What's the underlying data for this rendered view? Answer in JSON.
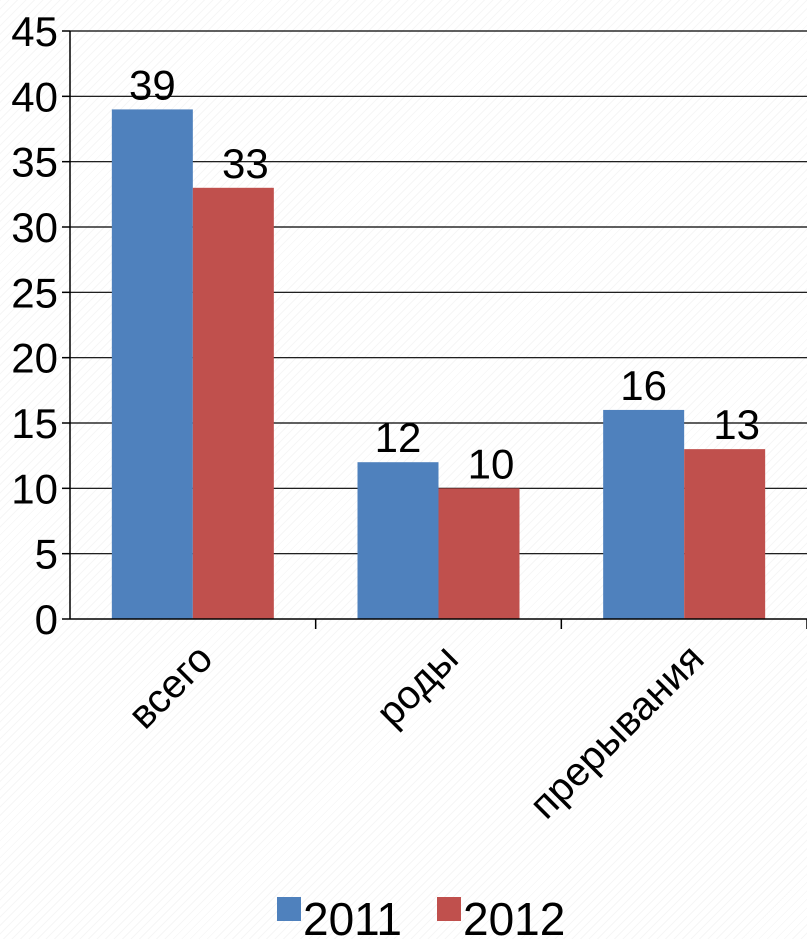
{
  "chart_data": {
    "type": "bar",
    "categories": [
      "всего",
      "роды",
      "прерывания"
    ],
    "series": [
      {
        "name": "2011",
        "values": [
          39,
          12,
          16
        ],
        "color": "#4f81bd"
      },
      {
        "name": "2012",
        "values": [
          33,
          10,
          13
        ],
        "color": "#c0504d"
      }
    ],
    "ylim": [
      0,
      45
    ],
    "ytick_step": 5,
    "grid": true,
    "legend": "bottom",
    "data_labels": true
  }
}
